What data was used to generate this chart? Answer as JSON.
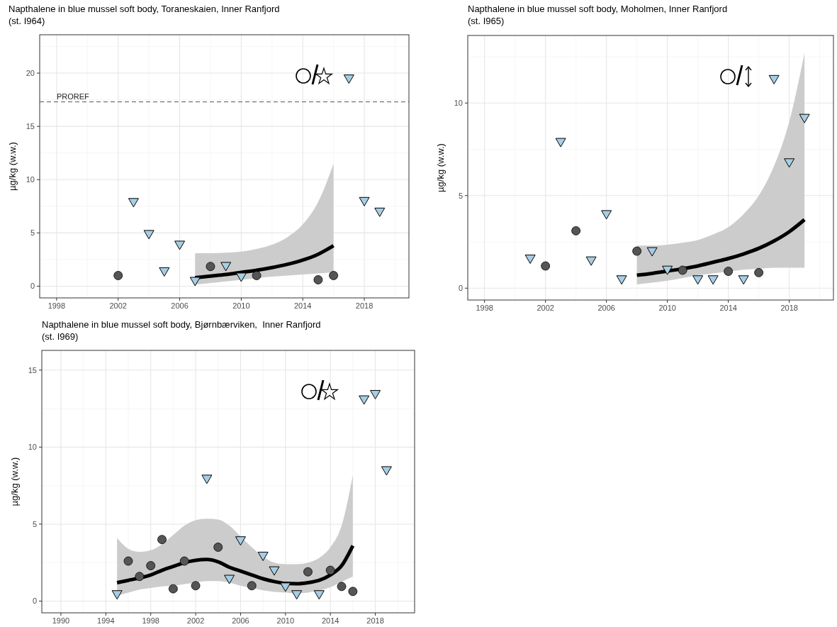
{
  "chart_data": [
    {
      "type": "scatter",
      "title": "Napthalene in blue mussel soft body, Toraneskaien, Inner Ranfjord\n(st. I964)",
      "ylabel": "µg/kg (w.w.)",
      "xlim": [
        1996.9,
        2020.9
      ],
      "xticks": [
        1998,
        2002,
        2006,
        2010,
        2014,
        2018
      ],
      "ylim": [
        -1.1,
        23.6
      ],
      "yticks": [
        0,
        5,
        10,
        15,
        20
      ],
      "grid": true,
      "ref_lines": [
        {
          "axis": "y",
          "value": 17.3,
          "label": "PROREF",
          "line_style": "dashed",
          "color": "#555555"
        }
      ],
      "series": [
        {
          "type": "line",
          "color": "#000000",
          "x": [
            2007,
            2008,
            2009,
            2010,
            2011,
            2012,
            2013,
            2014,
            2015,
            2016
          ],
          "values": [
            0.8,
            0.95,
            1.1,
            1.3,
            1.5,
            1.75,
            2.05,
            2.45,
            3.0,
            3.8
          ],
          "lower": [
            0.15,
            0.3,
            0.45,
            0.6,
            0.75,
            0.9,
            1.0,
            1.1,
            1.2,
            1.3
          ],
          "upper": [
            3.1,
            3.1,
            3.15,
            3.25,
            3.5,
            3.9,
            4.6,
            5.8,
            7.9,
            11.5
          ]
        },
        {
          "color": "#555555",
          "marker": "circle",
          "x": [
            2002,
            2008,
            2011,
            2015,
            2016
          ],
          "values": [
            1.0,
            1.85,
            1.0,
            0.6,
            1.0
          ]
        },
        {
          "color": "#a6cee3",
          "marker": "triangle",
          "x": [
            2003,
            2004,
            2005,
            2006,
            2007,
            2009,
            2010,
            2017,
            2018,
            2019
          ],
          "values": [
            7.9,
            4.9,
            1.4,
            3.9,
            0.5,
            1.9,
            0.9,
            19.5,
            8.0,
            7.0
          ]
        }
      ]
    },
    {
      "type": "scatter",
      "title": "Napthalene in blue mussel soft body, Moholmen, Inner Ranfjord\n(st. I965)",
      "ylabel": "µg/kg (w.w.)",
      "xlim": [
        1996.9,
        2020.9
      ],
      "xticks": [
        1998,
        2002,
        2006,
        2010,
        2014,
        2018
      ],
      "ylim": [
        -0.64,
        13.65
      ],
      "yticks": [
        0,
        5,
        10
      ],
      "grid": true,
      "series": [
        {
          "type": "line",
          "color": "#000000",
          "x": [
            2008,
            2009,
            2010,
            2011,
            2012,
            2013,
            2014,
            2015,
            2016,
            2017,
            2018,
            2019
          ],
          "values": [
            0.7,
            0.8,
            0.92,
            1.05,
            1.2,
            1.4,
            1.6,
            1.85,
            2.15,
            2.55,
            3.05,
            3.7
          ],
          "lower": [
            0.2,
            0.3,
            0.4,
            0.55,
            0.7,
            0.8,
            0.9,
            1.0,
            1.05,
            1.1,
            1.1,
            1.1
          ],
          "upper": [
            2.3,
            2.3,
            2.35,
            2.45,
            2.6,
            2.9,
            3.3,
            4.0,
            5.0,
            6.6,
            9.0,
            12.7
          ]
        },
        {
          "color": "#555555",
          "marker": "circle",
          "x": [
            2002,
            2004,
            2008,
            2011,
            2014,
            2016
          ],
          "values": [
            1.2,
            3.1,
            2.0,
            0.97,
            0.91,
            0.84
          ]
        },
        {
          "color": "#a6cee3",
          "marker": "triangle",
          "x": [
            2001,
            2003,
            2005,
            2006,
            2007,
            2009,
            2010,
            2012,
            2013,
            2015,
            2017,
            2018,
            2019
          ],
          "values": [
            1.6,
            7.9,
            1.5,
            4.0,
            0.48,
            2.0,
            1.0,
            0.48,
            0.48,
            0.48,
            11.3,
            6.8,
            9.2
          ]
        }
      ]
    },
    {
      "type": "scatter",
      "title": "Napthalene in blue mussel soft body, Bjørnbærviken,  Inner Ranfjord\n(st. I969)",
      "ylabel": "µg/kg (w.w.)",
      "xlim": [
        1988.3,
        2021.5
      ],
      "xticks": [
        1990,
        1994,
        1998,
        2002,
        2006,
        2010,
        2014,
        2018
      ],
      "ylim": [
        -0.76,
        16.28
      ],
      "yticks": [
        0,
        5,
        10,
        15
      ],
      "grid": true,
      "series": [
        {
          "type": "line",
          "color": "#000000",
          "x": [
            1995,
            1996,
            1997,
            1998,
            1999,
            2000,
            2001,
            2002,
            2003,
            2004,
            2005,
            2006,
            2007,
            2008,
            2009,
            2010,
            2011,
            2012,
            2013,
            2014,
            2015,
            2016
          ],
          "values": [
            1.2,
            1.35,
            1.5,
            1.7,
            2.0,
            2.25,
            2.5,
            2.65,
            2.7,
            2.55,
            2.2,
            1.95,
            1.7,
            1.45,
            1.27,
            1.15,
            1.13,
            1.2,
            1.35,
            1.7,
            2.3,
            3.6
          ],
          "lower": [
            0.35,
            0.55,
            0.75,
            0.85,
            0.95,
            1.0,
            1.1,
            1.2,
            1.3,
            1.3,
            1.2,
            1.0,
            0.85,
            0.7,
            0.6,
            0.55,
            0.5,
            0.55,
            0.7,
            0.9,
            1.25,
            1.6
          ],
          "upper": [
            4.1,
            3.4,
            3.2,
            3.3,
            3.7,
            4.3,
            4.9,
            5.25,
            5.35,
            5.3,
            4.9,
            4.2,
            3.5,
            2.9,
            2.5,
            2.4,
            2.4,
            2.5,
            2.8,
            3.5,
            4.9,
            8.2
          ]
        },
        {
          "color": "#555555",
          "marker": "circle",
          "x": [
            1996,
            1997,
            1998,
            1999,
            2000,
            2001,
            2002,
            2004,
            2007,
            2012,
            2014,
            2015,
            2016
          ],
          "values": [
            2.6,
            1.6,
            2.3,
            4.0,
            0.8,
            2.6,
            1.0,
            3.5,
            1.0,
            1.9,
            2.0,
            0.95,
            0.63
          ]
        },
        {
          "color": "#a6cee3",
          "marker": "triangle",
          "x": [
            1995,
            2003,
            2005,
            2006,
            2008,
            2009,
            2010,
            2011,
            2013,
            2017,
            2018,
            2019
          ],
          "values": [
            0.45,
            7.95,
            1.45,
            3.95,
            2.95,
            2.0,
            0.95,
            0.45,
            0.45,
            13.1,
            13.45,
            8.5
          ]
        }
      ]
    }
  ]
}
